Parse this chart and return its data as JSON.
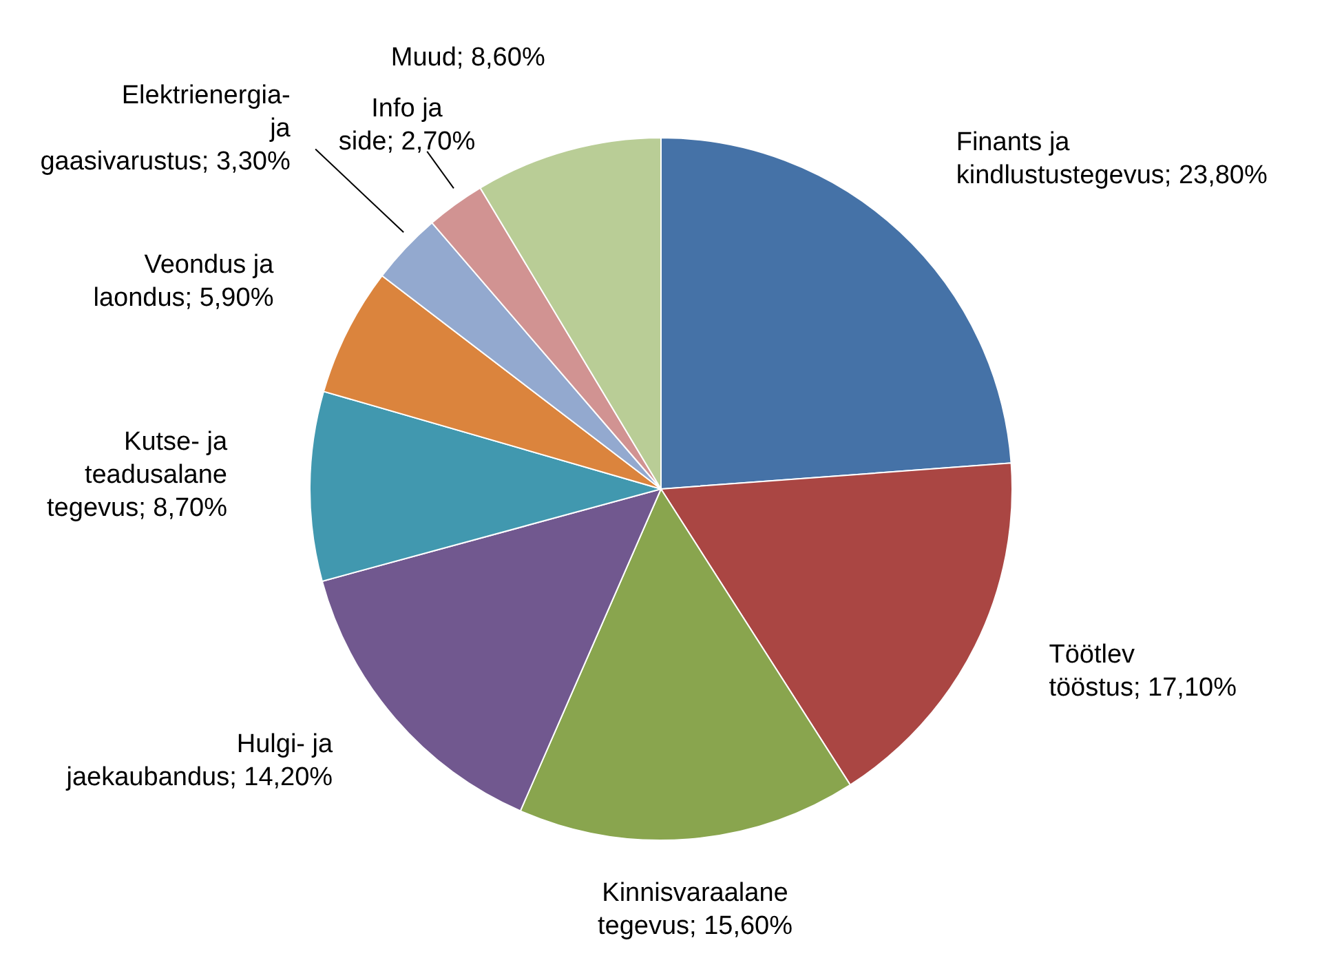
{
  "chart_data": {
    "type": "pie",
    "categories": [
      "Finants ja kindlustustegevus",
      "Töötlev tööstus",
      "Kinnisvaraalane tegevus",
      "Hulgi- ja jaekaubandus",
      "Kutse- ja teadusalane tegevus",
      "Veondus ja laondus",
      "Elektrienergia- ja gaasivarustus",
      "Info ja side",
      "Muud"
    ],
    "values": [
      23.8,
      17.1,
      15.6,
      14.2,
      8.7,
      5.9,
      3.3,
      2.7,
      8.6
    ],
    "value_labels": [
      "23,80%",
      "17,10%",
      "15,60%",
      "14,20%",
      "8,70%",
      "5,90%",
      "3,30%",
      "2,70%",
      "8,60%"
    ],
    "colors": [
      "#4572a7",
      "#aa4643",
      "#89a54e",
      "#71588f",
      "#4198af",
      "#db843d",
      "#93a9cf",
      "#d19392",
      "#b9cd96"
    ]
  }
}
